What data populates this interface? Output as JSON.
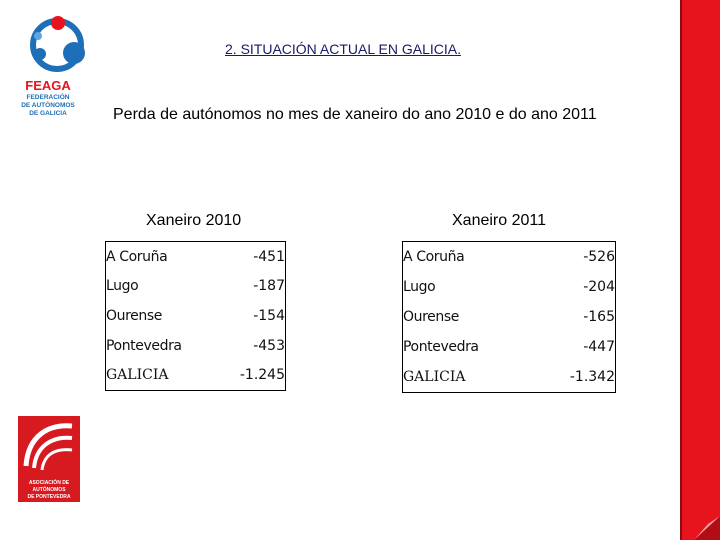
{
  "header": {
    "title": "2. SITUACIÓN ACTUAL EN GALICIA.",
    "subtitle": "Perda de autónomos no mes de xaneiro do ano 2010 e do ano 2011"
  },
  "logo_top": {
    "acronym": "FEAGA",
    "lines": [
      "FEDERACIÓN",
      "DE AUTÓNOMOS",
      "DE GALICIA"
    ]
  },
  "logo_bottom": {
    "lines": [
      "ASOCIACIÓN DE",
      "AUTÓNOMOS",
      "DE PONTEVEDRA"
    ]
  },
  "table_2010": {
    "heading": "Xaneiro 2010",
    "rows": [
      {
        "province": "A Coruña",
        "value": "-451"
      },
      {
        "province": "Lugo",
        "value": "-187"
      },
      {
        "province": "Ourense",
        "value": "-154"
      },
      {
        "province": "Pontevedra",
        "value": "-453"
      },
      {
        "province": "GALICIA",
        "value": "-1.245"
      }
    ]
  },
  "table_2011": {
    "heading": "Xaneiro 2011",
    "rows": [
      {
        "province": "A Coruña",
        "value": "-526"
      },
      {
        "province": "Lugo",
        "value": "-204"
      },
      {
        "province": "Ourense",
        "value": "-165"
      },
      {
        "province": "Pontevedra",
        "value": "-447"
      },
      {
        "province": "GALICIA",
        "value": "-1.342"
      }
    ]
  },
  "colors": {
    "accent_red": "#e8141d",
    "logo_blue": "#1f6fb8",
    "title_blue": "#1a1a66"
  }
}
